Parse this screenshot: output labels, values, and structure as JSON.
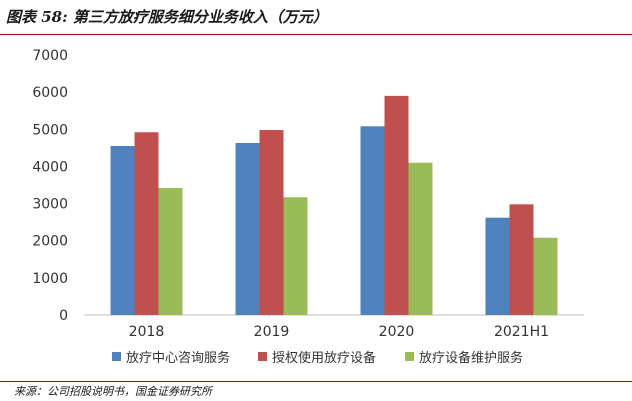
{
  "title": "图表 58:  第三方放疗服务细分业务收入（万元）",
  "source": "来源：公司招股说明书，国金证券研究所",
  "chart_data": {
    "type": "bar",
    "categories": [
      "2018",
      "2019",
      "2020",
      "2021H1"
    ],
    "series": [
      {
        "name": "放疗中心咨询服务",
        "values": [
          4550,
          4630,
          5080,
          2620
        ],
        "color": "#4f81bd"
      },
      {
        "name": "授权使用放疗设备",
        "values": [
          4920,
          4980,
          5900,
          2980
        ],
        "color": "#c0504d"
      },
      {
        "name": "放疗设备维护服务",
        "values": [
          3420,
          3170,
          4100,
          2080
        ],
        "color": "#9bbb59"
      }
    ],
    "yticks": [
      "0",
      "1000",
      "2000",
      "3000",
      "4000",
      "5000",
      "6000",
      "7000"
    ],
    "ylim": [
      0,
      7000
    ],
    "grid": false,
    "legend_position": "bottom"
  }
}
